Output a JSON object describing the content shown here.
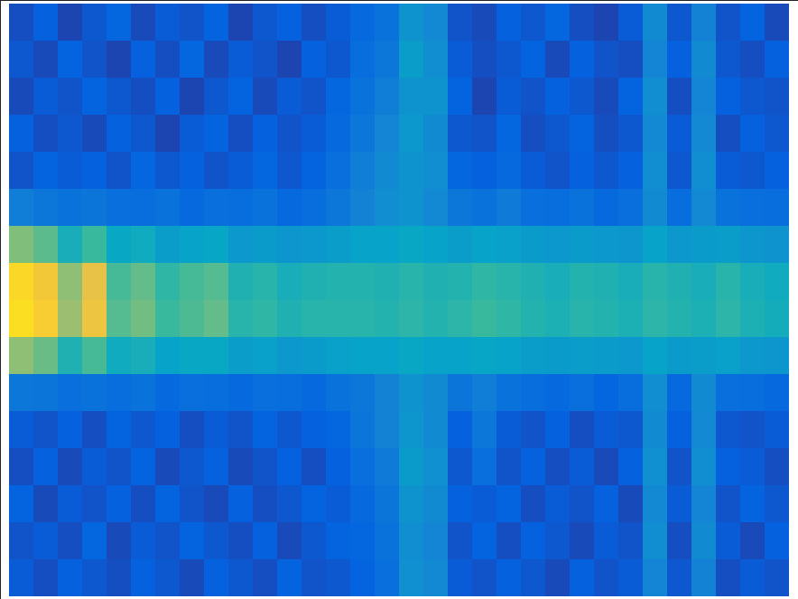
{
  "chart_data": {
    "type": "heatmap",
    "tick_labels": false,
    "clim": [
      0,
      1
    ],
    "cells": [
      [
        0.08,
        0.12,
        0.06,
        0.1,
        0.14,
        0.07,
        0.11,
        0.09,
        0.13,
        0.06,
        0.1,
        0.12,
        0.08,
        0.11,
        0.15,
        0.18,
        0.3,
        0.26,
        0.09,
        0.07,
        0.12,
        0.1,
        0.14,
        0.08,
        0.06,
        0.11,
        0.27,
        0.1,
        0.24,
        0.09,
        0.13,
        0.07
      ],
      [
        0.1,
        0.07,
        0.13,
        0.09,
        0.06,
        0.12,
        0.08,
        0.14,
        0.07,
        0.11,
        0.09,
        0.06,
        0.12,
        0.1,
        0.16,
        0.2,
        0.34,
        0.28,
        0.11,
        0.08,
        0.1,
        0.13,
        0.07,
        0.12,
        0.09,
        0.08,
        0.25,
        0.12,
        0.27,
        0.1,
        0.08,
        0.12
      ],
      [
        0.07,
        0.11,
        0.09,
        0.13,
        0.1,
        0.08,
        0.12,
        0.06,
        0.1,
        0.13,
        0.07,
        0.11,
        0.09,
        0.14,
        0.18,
        0.22,
        0.3,
        0.3,
        0.13,
        0.06,
        0.11,
        0.09,
        0.12,
        0.1,
        0.07,
        0.13,
        0.28,
        0.08,
        0.25,
        0.12,
        0.1,
        0.09
      ],
      [
        0.12,
        0.08,
        0.1,
        0.07,
        0.12,
        0.1,
        0.06,
        0.11,
        0.13,
        0.08,
        0.12,
        0.09,
        0.11,
        0.15,
        0.2,
        0.25,
        0.32,
        0.27,
        0.1,
        0.09,
        0.14,
        0.08,
        0.1,
        0.13,
        0.08,
        0.1,
        0.26,
        0.11,
        0.26,
        0.08,
        0.12,
        0.1
      ],
      [
        0.09,
        0.13,
        0.11,
        0.12,
        0.09,
        0.14,
        0.1,
        0.12,
        0.09,
        0.11,
        0.14,
        0.1,
        0.13,
        0.17,
        0.22,
        0.27,
        0.3,
        0.28,
        0.14,
        0.12,
        0.15,
        0.11,
        0.09,
        0.12,
        0.1,
        0.12,
        0.28,
        0.1,
        0.28,
        0.11,
        0.1,
        0.12
      ],
      [
        0.22,
        0.2,
        0.18,
        0.19,
        0.17,
        0.16,
        0.18,
        0.15,
        0.17,
        0.16,
        0.18,
        0.15,
        0.16,
        0.2,
        0.24,
        0.28,
        0.3,
        0.26,
        0.2,
        0.18,
        0.21,
        0.17,
        0.16,
        0.18,
        0.15,
        0.17,
        0.27,
        0.16,
        0.26,
        0.18,
        0.17,
        0.16
      ],
      [
        0.6,
        0.55,
        0.42,
        0.5,
        0.38,
        0.4,
        0.34,
        0.36,
        0.37,
        0.32,
        0.33,
        0.31,
        0.32,
        0.34,
        0.36,
        0.36,
        0.38,
        0.36,
        0.34,
        0.36,
        0.35,
        0.33,
        0.32,
        0.33,
        0.32,
        0.31,
        0.36,
        0.32,
        0.33,
        0.34,
        0.31,
        0.3
      ],
      [
        0.9,
        0.84,
        0.62,
        0.8,
        0.52,
        0.56,
        0.48,
        0.52,
        0.54,
        0.44,
        0.46,
        0.42,
        0.44,
        0.45,
        0.45,
        0.44,
        0.46,
        0.44,
        0.45,
        0.48,
        0.46,
        0.44,
        0.42,
        0.45,
        0.44,
        0.42,
        0.46,
        0.44,
        0.42,
        0.46,
        0.42,
        0.4
      ],
      [
        0.92,
        0.86,
        0.64,
        0.82,
        0.54,
        0.58,
        0.5,
        0.53,
        0.56,
        0.46,
        0.48,
        0.44,
        0.46,
        0.46,
        0.46,
        0.45,
        0.47,
        0.45,
        0.47,
        0.5,
        0.48,
        0.45,
        0.43,
        0.46,
        0.45,
        0.43,
        0.47,
        0.45,
        0.43,
        0.47,
        0.43,
        0.41
      ],
      [
        0.62,
        0.57,
        0.44,
        0.52,
        0.4,
        0.42,
        0.36,
        0.38,
        0.38,
        0.34,
        0.35,
        0.32,
        0.33,
        0.35,
        0.36,
        0.36,
        0.38,
        0.36,
        0.36,
        0.37,
        0.36,
        0.34,
        0.33,
        0.34,
        0.33,
        0.32,
        0.36,
        0.33,
        0.34,
        0.35,
        0.32,
        0.31
      ],
      [
        0.2,
        0.19,
        0.17,
        0.18,
        0.16,
        0.18,
        0.15,
        0.17,
        0.16,
        0.15,
        0.17,
        0.16,
        0.15,
        0.18,
        0.2,
        0.24,
        0.3,
        0.27,
        0.19,
        0.22,
        0.18,
        0.16,
        0.15,
        0.17,
        0.14,
        0.16,
        0.28,
        0.15,
        0.27,
        0.17,
        0.16,
        0.15
      ],
      [
        0.11,
        0.09,
        0.12,
        0.08,
        0.13,
        0.1,
        0.12,
        0.08,
        0.11,
        0.09,
        0.13,
        0.1,
        0.12,
        0.14,
        0.19,
        0.24,
        0.31,
        0.27,
        0.12,
        0.2,
        0.11,
        0.09,
        0.12,
        0.08,
        0.11,
        0.1,
        0.27,
        0.12,
        0.26,
        0.1,
        0.09,
        0.11
      ],
      [
        0.08,
        0.12,
        0.07,
        0.11,
        0.09,
        0.13,
        0.07,
        0.1,
        0.12,
        0.07,
        0.09,
        0.12,
        0.08,
        0.12,
        0.17,
        0.21,
        0.33,
        0.29,
        0.1,
        0.17,
        0.09,
        0.12,
        0.08,
        0.11,
        0.07,
        0.12,
        0.29,
        0.09,
        0.28,
        0.12,
        0.11,
        0.08
      ],
      [
        0.13,
        0.07,
        0.11,
        0.09,
        0.12,
        0.08,
        0.13,
        0.09,
        0.07,
        0.12,
        0.08,
        0.1,
        0.13,
        0.11,
        0.15,
        0.19,
        0.3,
        0.27,
        0.12,
        0.11,
        0.13,
        0.08,
        0.11,
        0.09,
        0.12,
        0.07,
        0.26,
        0.11,
        0.25,
        0.09,
        0.13,
        0.1
      ],
      [
        0.09,
        0.11,
        0.08,
        0.14,
        0.07,
        0.11,
        0.09,
        0.13,
        0.1,
        0.08,
        0.12,
        0.07,
        0.1,
        0.13,
        0.14,
        0.18,
        0.28,
        0.25,
        0.09,
        0.13,
        0.08,
        0.12,
        0.1,
        0.07,
        0.11,
        0.09,
        0.28,
        0.08,
        0.27,
        0.11,
        0.07,
        0.12
      ],
      [
        0.11,
        0.08,
        0.12,
        0.1,
        0.08,
        0.12,
        0.1,
        0.07,
        0.12,
        0.1,
        0.08,
        0.13,
        0.09,
        0.1,
        0.13,
        0.17,
        0.29,
        0.26,
        0.11,
        0.09,
        0.12,
        0.1,
        0.07,
        0.12,
        0.09,
        0.11,
        0.25,
        0.1,
        0.24,
        0.08,
        0.11,
        0.09
      ]
    ]
  }
}
